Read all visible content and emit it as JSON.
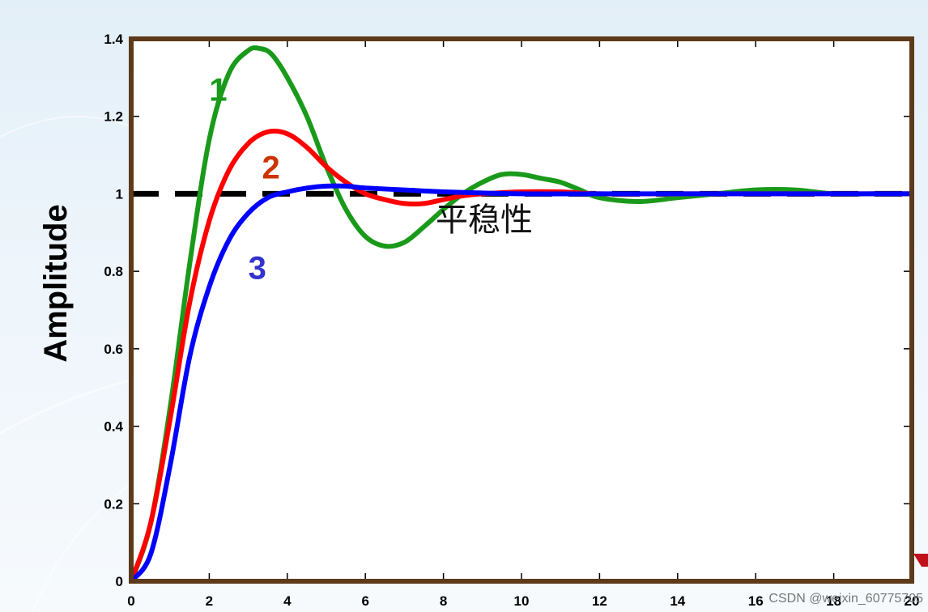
{
  "chart_data": {
    "type": "line",
    "title": "",
    "xlabel": "",
    "ylabel": "Amplitude",
    "xlim": [
      0,
      20
    ],
    "ylim": [
      0,
      1.4
    ],
    "x_ticks": [
      "0",
      "2",
      "4",
      "6",
      "8",
      "10",
      "12",
      "14",
      "16",
      "18",
      "20"
    ],
    "y_ticks": [
      "0",
      "0.2",
      "0.4",
      "0.6",
      "0.8",
      "1",
      "1.2",
      "1.4"
    ],
    "grid": false,
    "reference_line": {
      "y": 1,
      "style": "dashed",
      "color": "#000000"
    },
    "series": [
      {
        "name": "1",
        "color": "#1a9a1a",
        "x": [
          0,
          0.5,
          1,
          1.5,
          2,
          2.5,
          3,
          3.3,
          3.6,
          4,
          4.5,
          5,
          5.5,
          6,
          6.5,
          7,
          7.5,
          8,
          8.5,
          9,
          9.5,
          10,
          10.5,
          11,
          11.5,
          12,
          13,
          14,
          15,
          16,
          17,
          18,
          19,
          20
        ],
        "y": [
          0,
          0.15,
          0.45,
          0.82,
          1.14,
          1.31,
          1.37,
          1.375,
          1.36,
          1.3,
          1.2,
          1.07,
          0.96,
          0.89,
          0.865,
          0.875,
          0.915,
          0.96,
          1.0,
          1.03,
          1.05,
          1.05,
          1.04,
          1.03,
          1.01,
          0.99,
          0.98,
          0.99,
          1.0,
          1.01,
          1.01,
          1.0,
          1.0,
          1.0
        ]
      },
      {
        "name": "2",
        "color": "#ff0000",
        "x": [
          0,
          0.5,
          1,
          1.5,
          2,
          2.5,
          3,
          3.5,
          4,
          4.5,
          5,
          5.5,
          6,
          6.5,
          7,
          7.5,
          8,
          8.5,
          9,
          10,
          11,
          12,
          14,
          16,
          18,
          20
        ],
        "y": [
          0,
          0.15,
          0.42,
          0.72,
          0.93,
          1.06,
          1.13,
          1.16,
          1.155,
          1.12,
          1.07,
          1.03,
          1.0,
          0.985,
          0.975,
          0.975,
          0.985,
          0.995,
          1.0,
          1.005,
          1.005,
          1.0,
          1.0,
          1.0,
          1.0,
          1.0
        ]
      },
      {
        "name": "3",
        "color": "#0000ff",
        "x": [
          0,
          0.5,
          1,
          1.5,
          2,
          2.5,
          3,
          3.5,
          4,
          4.5,
          5,
          5.5,
          6,
          7,
          8,
          10,
          12,
          14,
          16,
          18,
          20
        ],
        "y": [
          0,
          0.07,
          0.3,
          0.58,
          0.76,
          0.88,
          0.95,
          0.99,
          1.005,
          1.015,
          1.02,
          1.02,
          1.015,
          1.01,
          1.005,
          1.0,
          1.0,
          1.0,
          1.0,
          1.0,
          1.0
        ]
      }
    ],
    "series_labels": [
      {
        "text": "1",
        "color": "#1a9a1a",
        "at": [
          2.0,
          1.24
        ]
      },
      {
        "text": "2",
        "color": "#cc3300",
        "at": [
          3.35,
          1.04
        ]
      },
      {
        "text": "3",
        "color": "#3333cc",
        "at": [
          3.0,
          0.78
        ]
      }
    ],
    "annotations": [
      {
        "text": "平稳性",
        "at": [
          7.8,
          0.905
        ]
      }
    ]
  },
  "frame_color": "#5c3a1a",
  "watermark": "CSDN @weixin_60775705"
}
